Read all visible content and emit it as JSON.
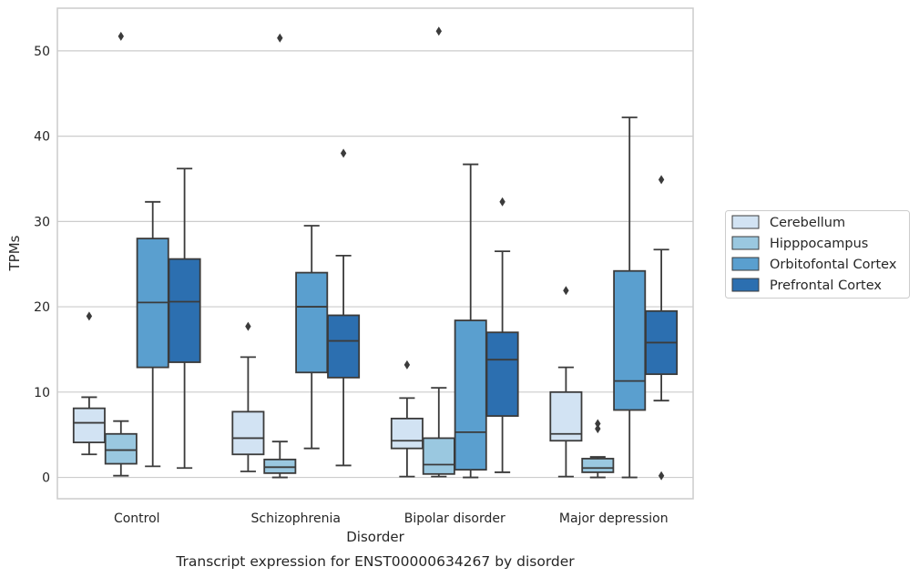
{
  "chart_data": {
    "type": "boxplot",
    "caption": "Transcript expression for ENST00000634267 by disorder",
    "xlabel": "Disorder",
    "ylabel": "TPMs",
    "ylim": [
      -2.5,
      55
    ],
    "yticks": [
      0,
      10,
      20,
      30,
      40,
      50
    ],
    "grid": "horizontal",
    "legend_position": "right",
    "categories": [
      "Control",
      "Schizophrenia",
      "Bipolar disorder",
      "Major depression"
    ],
    "series": [
      {
        "name": "Cerebellum",
        "color": "#d2e3f3",
        "boxes": [
          {
            "whislo": 2.7,
            "q1": 4.1,
            "med": 6.4,
            "q3": 8.1,
            "whishi": 9.4,
            "fliers": [
              18.9
            ]
          },
          {
            "whislo": 0.7,
            "q1": 2.7,
            "med": 4.6,
            "q3": 7.7,
            "whishi": 14.1,
            "fliers": [
              17.7
            ]
          },
          {
            "whislo": 0.1,
            "q1": 3.4,
            "med": 4.3,
            "q3": 6.9,
            "whishi": 9.3,
            "fliers": [
              13.2
            ]
          },
          {
            "whislo": 0.1,
            "q1": 4.3,
            "med": 5.1,
            "q3": 10.0,
            "whishi": 12.9,
            "fliers": [
              21.9
            ]
          }
        ]
      },
      {
        "name": "Hipppocampus",
        "color": "#9ac8e0",
        "boxes": [
          {
            "whislo": 0.2,
            "q1": 1.6,
            "med": 3.2,
            "q3": 5.1,
            "whishi": 6.6,
            "fliers": [
              51.7
            ]
          },
          {
            "whislo": 0.0,
            "q1": 0.5,
            "med": 1.2,
            "q3": 2.1,
            "whishi": 4.2,
            "fliers": [
              51.5
            ]
          },
          {
            "whislo": 0.1,
            "q1": 0.4,
            "med": 1.5,
            "q3": 4.6,
            "whishi": 10.5,
            "fliers": [
              52.3
            ]
          },
          {
            "whislo": 0.0,
            "q1": 0.6,
            "med": 1.1,
            "q3": 2.2,
            "whishi": 2.4,
            "fliers": [
              5.7,
              6.3
            ]
          }
        ]
      },
      {
        "name": "Orbitofontal Cortex",
        "color": "#5a9fcf",
        "boxes": [
          {
            "whislo": 1.3,
            "q1": 12.9,
            "med": 20.5,
            "q3": 28.0,
            "whishi": 32.3,
            "fliers": []
          },
          {
            "whislo": 3.4,
            "q1": 12.3,
            "med": 20.0,
            "q3": 24.0,
            "whishi": 29.5,
            "fliers": []
          },
          {
            "whislo": 0.0,
            "q1": 0.9,
            "med": 5.3,
            "q3": 18.4,
            "whishi": 36.7,
            "fliers": []
          },
          {
            "whislo": 0.0,
            "q1": 7.9,
            "med": 11.3,
            "q3": 24.2,
            "whishi": 42.2,
            "fliers": []
          }
        ]
      },
      {
        "name": "Prefrontal Cortex",
        "color": "#2c6fb0",
        "boxes": [
          {
            "whislo": 1.1,
            "q1": 13.5,
            "med": 20.6,
            "q3": 25.6,
            "whishi": 36.2,
            "fliers": []
          },
          {
            "whislo": 1.4,
            "q1": 11.7,
            "med": 16.0,
            "q3": 19.0,
            "whishi": 26.0,
            "fliers": [
              38.0
            ]
          },
          {
            "whislo": 0.6,
            "q1": 7.2,
            "med": 13.8,
            "q3": 17.0,
            "whishi": 26.5,
            "fliers": [
              32.3
            ]
          },
          {
            "whislo": 9.0,
            "q1": 12.1,
            "med": 15.8,
            "q3": 19.5,
            "whishi": 26.7,
            "fliers": [
              0.2,
              34.9
            ]
          }
        ]
      }
    ]
  }
}
